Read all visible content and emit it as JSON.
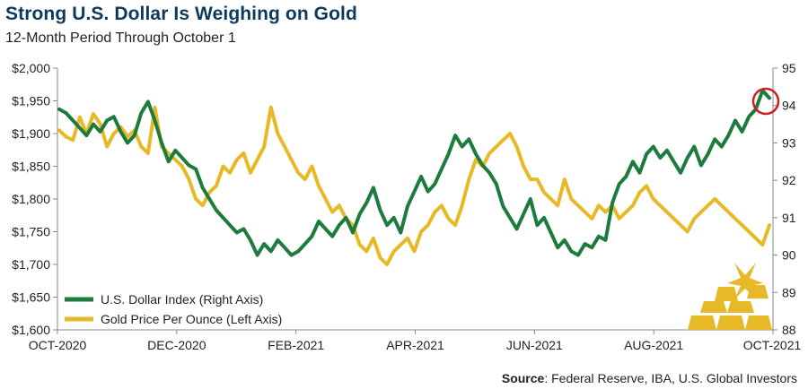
{
  "title": "Strong U.S. Dollar Is Weighing on Gold",
  "subtitle": "12-Month Period Through October 1",
  "source": {
    "label": "Source",
    "text": ": Federal Reserve, IBA, U.S. Global Investors"
  },
  "colors": {
    "usd": "#1e7b3e",
    "gold": "#e8b926",
    "highlight": "#cc1f1f",
    "axis": "#888888",
    "title": "#0b3a5c"
  },
  "chart_data": {
    "type": "line",
    "title": "Strong U.S. Dollar Is Weighing on Gold",
    "subtitle": "12-Month Period Through October 1",
    "x_ticks": [
      "OCT-2020",
      "DEC-2020",
      "FEB-2021",
      "APR-2021",
      "JUN-2021",
      "AUG-2021",
      "OCT-2021"
    ],
    "left_axis": {
      "ticks": [
        "$1,600",
        "$1,650",
        "$1,700",
        "$1,750",
        "$1,800",
        "$1,850",
        "$1,900",
        "$1,950",
        "$2,000"
      ],
      "ylim": [
        1600,
        2000
      ]
    },
    "right_axis": {
      "ticks": [
        "88",
        "89",
        "90",
        "91",
        "92",
        "93",
        "94",
        "95"
      ],
      "ylim": [
        88,
        95
      ]
    },
    "grid": false,
    "legend_position": "bottom-left",
    "series": [
      {
        "name": "U.S. Dollar Index (Right Axis)",
        "axis": "right",
        "color": "#1e7b3e",
        "values": [
          93.9,
          93.8,
          93.6,
          93.4,
          93.2,
          93.5,
          93.3,
          93.6,
          93.7,
          93.3,
          93.0,
          93.2,
          93.8,
          94.1,
          93.6,
          93.0,
          92.5,
          92.8,
          92.6,
          92.4,
          92.3,
          91.8,
          91.5,
          91.2,
          91.0,
          90.8,
          90.6,
          90.7,
          90.4,
          90.0,
          90.3,
          90.1,
          90.4,
          90.2,
          90.0,
          90.1,
          90.3,
          90.5,
          90.9,
          90.7,
          90.5,
          90.8,
          91.0,
          90.6,
          91.1,
          91.4,
          91.8,
          91.2,
          90.8,
          91.0,
          90.6,
          91.3,
          91.7,
          92.1,
          91.7,
          91.9,
          92.3,
          92.7,
          93.2,
          92.9,
          93.1,
          92.7,
          92.4,
          92.2,
          91.9,
          91.3,
          91.0,
          90.7,
          91.1,
          91.5,
          90.8,
          91.0,
          90.6,
          90.2,
          90.4,
          90.1,
          90.0,
          90.3,
          90.2,
          90.5,
          90.4,
          91.4,
          91.9,
          92.1,
          92.5,
          92.2,
          92.7,
          92.9,
          92.6,
          92.8,
          92.5,
          92.2,
          92.6,
          92.9,
          92.4,
          92.7,
          93.1,
          92.9,
          93.2,
          93.6,
          93.3,
          93.7,
          93.9,
          94.4,
          94.2
        ]
      },
      {
        "name": "Gold Price Per Ounce (Left Axis)",
        "axis": "left",
        "color": "#e8b926",
        "values": [
          1905,
          1895,
          1890,
          1925,
          1900,
          1930,
          1915,
          1880,
          1900,
          1910,
          1895,
          1905,
          1880,
          1870,
          1940,
          1880,
          1870,
          1860,
          1850,
          1830,
          1800,
          1790,
          1810,
          1820,
          1850,
          1840,
          1860,
          1870,
          1840,
          1860,
          1880,
          1940,
          1900,
          1880,
          1860,
          1840,
          1830,
          1850,
          1820,
          1800,
          1780,
          1790,
          1770,
          1760,
          1730,
          1720,
          1740,
          1710,
          1700,
          1720,
          1730,
          1740,
          1720,
          1750,
          1760,
          1780,
          1790,
          1770,
          1760,
          1790,
          1830,
          1860,
          1850,
          1870,
          1880,
          1890,
          1900,
          1880,
          1850,
          1830,
          1830,
          1810,
          1800,
          1790,
          1830,
          1800,
          1790,
          1780,
          1770,
          1790,
          1780,
          1790,
          1770,
          1780,
          1790,
          1810,
          1820,
          1800,
          1790,
          1780,
          1770,
          1760,
          1750,
          1770,
          1780,
          1790,
          1800,
          1790,
          1780,
          1770,
          1760,
          1750,
          1740,
          1730,
          1760
        ]
      }
    ],
    "annotations": [
      "circle marking latest U.S. Dollar Index high"
    ]
  }
}
